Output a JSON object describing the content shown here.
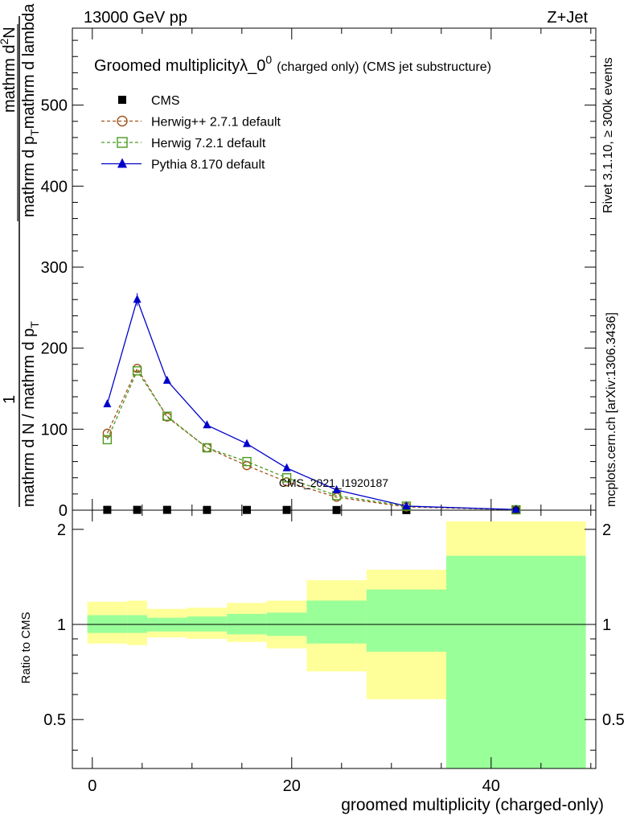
{
  "header": {
    "energy": "13000 GeV pp",
    "process": "Z+Jet"
  },
  "side_labels": {
    "rivet": "Rivet 3.1.10, ≥ 300k events",
    "mcplots": "mcplots.cern.ch [arXiv:1306.3436]"
  },
  "chart_data": {
    "type": "line",
    "title_main": "Groomed multiplicityλ_0",
    "title_sup": "0",
    "title_sub": "(charged only) (CMS jet substructure)",
    "xlabel": "groomed multiplicity (charged-only)",
    "ylabel_top": {
      "numer": "1",
      "denom": "mathrm d N / mathrm d p",
      "denom_sub": "T",
      "frac_numer": "mathrm d",
      "frac_numer_sup": "2",
      "frac_numer_tail": "N",
      "frac_denom": "mathrm d p",
      "frac_denom_sub": "T",
      "frac_denom_tail": "mathrm d lambda"
    },
    "ylabel_ratio": "Ratio to CMS",
    "watermark": "CMS_2021_I1920187",
    "xlim": [
      -2,
      50.5
    ],
    "ylim": [
      0,
      595
    ],
    "ratio_ylim_log": [
      0.35,
      2.3
    ],
    "x_ticks": [
      0,
      20,
      40
    ],
    "y_ticks": [
      0,
      100,
      200,
      300,
      400,
      500
    ],
    "ratio_ticks": [
      0.5,
      1,
      2
    ],
    "bin_edges": [
      -0.5,
      3.5,
      5.5,
      9.5,
      13.5,
      17.5,
      21.5,
      27.5,
      35.5,
      49.5
    ],
    "bin_centers": [
      1.5,
      4.5,
      7.5,
      11.5,
      15.5,
      19.5,
      24.5,
      31.5,
      42.5
    ],
    "series": [
      {
        "name": "CMS",
        "color": "#000000",
        "marker": "square-filled",
        "line": "none",
        "values": [
          0.4,
          0.4,
          0.4,
          0.3,
          0.3,
          0.3,
          0.2,
          0.1,
          0.05
        ]
      },
      {
        "name": "Herwig++ 2.7.1 default",
        "color": "#a0521a",
        "marker": "circle-open",
        "line": "dashed",
        "values": [
          95,
          175,
          115,
          77,
          55,
          35,
          16,
          4,
          0.5
        ]
      },
      {
        "name": "Herwig 7.2.1 default",
        "color": "#4a9a1e",
        "marker": "square-open",
        "line": "dashed",
        "values": [
          87,
          172,
          116,
          77,
          60,
          40,
          18,
          5,
          0.5
        ]
      },
      {
        "name": "Pythia 8.170 default",
        "color": "#0000cc",
        "marker": "triangle-filled",
        "line": "solid",
        "values": [
          131,
          260,
          160,
          105,
          82,
          52,
          25,
          5,
          0.8
        ]
      }
    ],
    "ratio_bands": {
      "outer_color": "#ffff99",
      "inner_color": "#99ff99",
      "outer": [
        [
          0.87,
          1.18
        ],
        [
          0.86,
          1.19
        ],
        [
          0.91,
          1.12
        ],
        [
          0.9,
          1.13
        ],
        [
          0.88,
          1.17
        ],
        [
          0.84,
          1.19
        ],
        [
          0.71,
          1.38
        ],
        [
          0.58,
          1.49
        ],
        [
          0.34,
          2.12
        ]
      ],
      "inner": [
        [
          0.94,
          1.07
        ],
        [
          0.94,
          1.07
        ],
        [
          0.95,
          1.05
        ],
        [
          0.95,
          1.06
        ],
        [
          0.93,
          1.08
        ],
        [
          0.92,
          1.09
        ],
        [
          0.87,
          1.19
        ],
        [
          0.82,
          1.29
        ],
        [
          0.34,
          1.65
        ]
      ]
    }
  }
}
